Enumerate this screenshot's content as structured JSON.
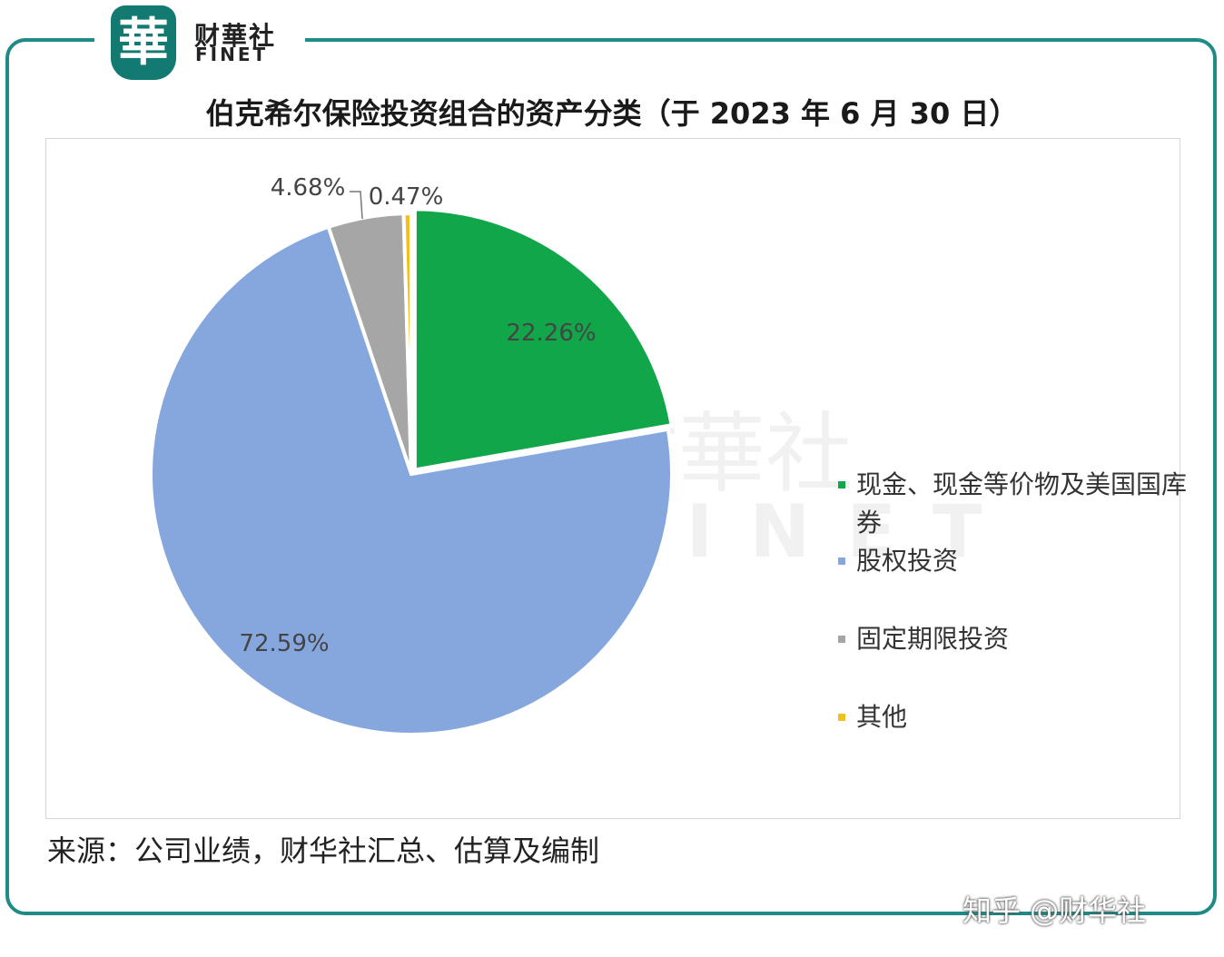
{
  "header": {
    "logo_glyph": "華",
    "logo_cn": "财華社",
    "logo_en": "FINET"
  },
  "chart_data": {
    "type": "pie",
    "title": "伯克希尔保险投资组合的资产分类（于 2023 年 6 月 30 日）",
    "series": [
      {
        "name": "现金、现金等价物及美国国库券",
        "value": 22.26,
        "label": "22.26%",
        "color": "#12a64a"
      },
      {
        "name": "股权投资",
        "value": 72.59,
        "label": "72.59%",
        "color": "#86a7de"
      },
      {
        "name": "固定期限投资",
        "value": 4.68,
        "label": "4.68%",
        "color": "#a6a6a6"
      },
      {
        "name": "其他",
        "value": 0.47,
        "label": "0.47%",
        "color": "#f2c01e"
      }
    ],
    "legend_position": "right"
  },
  "footer": {
    "source": "来源：公司业绩，财华社汇总、估算及编制",
    "watermark": "知乎 @财华社"
  }
}
